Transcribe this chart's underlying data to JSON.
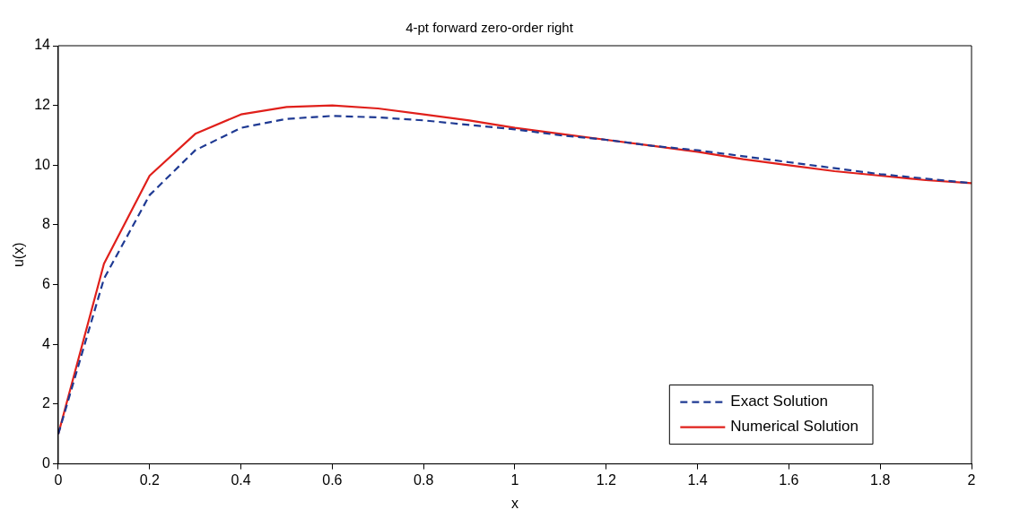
{
  "chart_data": {
    "type": "line",
    "title": "4-pt forward zero-order right",
    "xlabel": "x",
    "ylabel": "u(x)",
    "x": [
      0,
      0.1,
      0.2,
      0.3,
      0.4,
      0.5,
      0.6,
      0.7,
      0.8,
      0.9,
      1.0,
      1.1,
      1.2,
      1.3,
      1.4,
      1.5,
      1.6,
      1.7,
      1.8,
      1.9,
      2.0
    ],
    "series": [
      {
        "name": "Exact Solution",
        "color": "#1f3a93",
        "line_style": "dashed",
        "values": [
          1,
          6.2,
          9.0,
          10.5,
          11.25,
          11.55,
          11.65,
          11.6,
          11.5,
          11.35,
          11.2,
          11.0,
          10.85,
          10.65,
          10.5,
          10.3,
          10.1,
          9.9,
          9.7,
          9.55,
          9.4
        ]
      },
      {
        "name": "Numerical Solution",
        "color": "#e0201b",
        "line_style": "solid",
        "values": [
          1,
          6.7,
          9.65,
          11.05,
          11.7,
          11.95,
          12.0,
          11.9,
          11.7,
          11.5,
          11.25,
          11.05,
          10.85,
          10.65,
          10.45,
          10.2,
          10.0,
          9.8,
          9.65,
          9.5,
          9.4
        ]
      }
    ],
    "xlim": [
      0,
      2
    ],
    "xticks": [
      0,
      0.2,
      0.4,
      0.6,
      0.8,
      1,
      1.2,
      1.4,
      1.6,
      1.8,
      2
    ],
    "ylim": [
      0,
      14
    ],
    "yticks": [
      0,
      2,
      4,
      6,
      8,
      10,
      12,
      14
    ],
    "grid": false,
    "legend": "bottom right",
    "marker": "none"
  }
}
